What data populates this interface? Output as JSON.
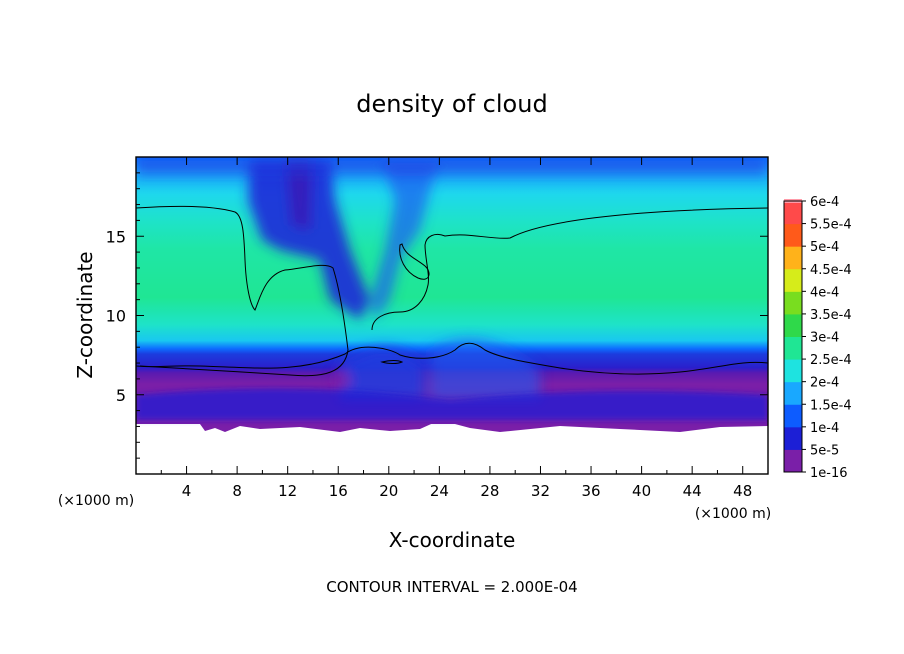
{
  "chart_data": {
    "type": "heatmap",
    "title": "density of cloud",
    "xlabel": "X-coordinate",
    "ylabel": "Z-coordinate",
    "x_unit_label": "(×1000 m)",
    "y_unit_label": "(×1000 m)",
    "footer": "CONTOUR INTERVAL = 2.000E-04",
    "xlim": [
      0,
      50
    ],
    "ylim": [
      0,
      20
    ],
    "xticks": [
      4,
      8,
      12,
      16,
      20,
      24,
      28,
      32,
      36,
      40,
      44,
      48
    ],
    "yticks": [
      5,
      10,
      15
    ],
    "colorbar": {
      "labels": [
        "1e-16",
        "5e-5",
        "1e-4",
        "1.5e-4",
        "2e-4",
        "2.5e-4",
        "3e-4",
        "3.5e-4",
        "4e-4",
        "4.5e-4",
        "5e-4",
        "5.5e-4",
        "6e-4"
      ],
      "colors": [
        "#7a1fa8",
        "#1c1fd6",
        "#0d5cff",
        "#19a8ff",
        "#1ee3e0",
        "#1fe694",
        "#2fd94a",
        "#79dd1f",
        "#d6ec1a",
        "#ffb21a",
        "#ff5a1a",
        "#ff4a4a",
        "#ff9aa8"
      ]
    },
    "contour_levels": [
      0.0002
    ]
  }
}
